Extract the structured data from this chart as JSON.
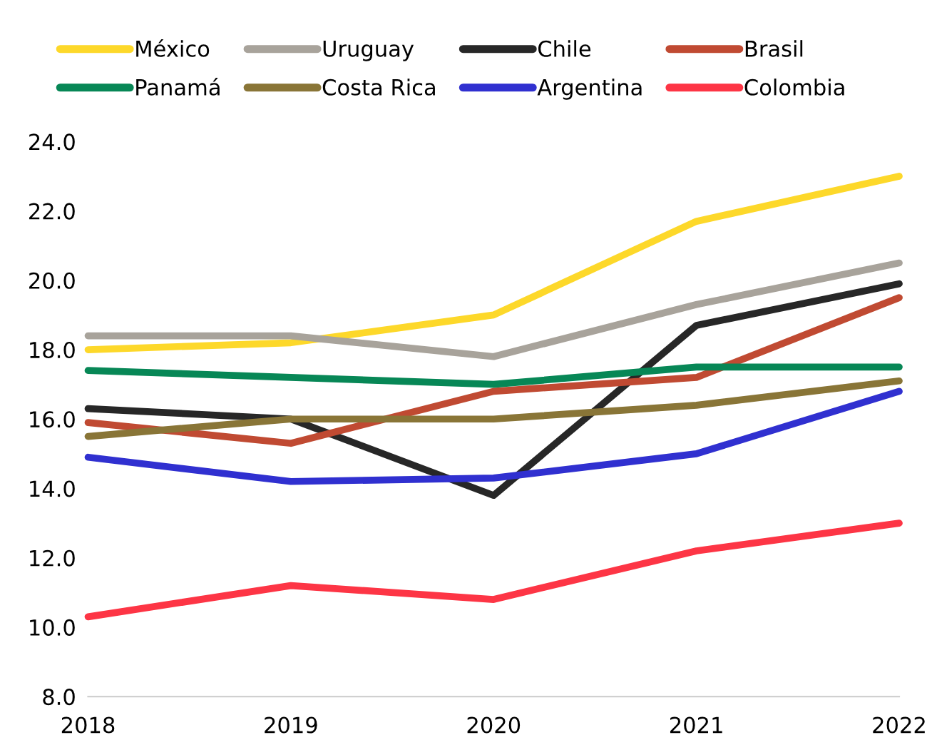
{
  "chart_data": {
    "type": "line",
    "x": [
      2018,
      2019,
      2020,
      2021,
      2022
    ],
    "series": [
      {
        "name": "México",
        "color": "#fdd82a",
        "values": [
          18.0,
          18.2,
          19.0,
          21.7,
          23.0
        ]
      },
      {
        "name": "Uruguay",
        "color": "#a8a39b",
        "values": [
          18.4,
          18.4,
          17.8,
          19.3,
          20.5
        ]
      },
      {
        "name": "Chile",
        "color": "#272727",
        "values": [
          16.3,
          16.0,
          13.8,
          18.7,
          19.9
        ]
      },
      {
        "name": "Brasil",
        "color": "#c04a32",
        "values": [
          15.9,
          15.3,
          16.8,
          17.2,
          19.5
        ]
      },
      {
        "name": "Panamá",
        "color": "#078756",
        "values": [
          17.4,
          17.2,
          17.0,
          17.5,
          17.5
        ]
      },
      {
        "name": "Costa Rica",
        "color": "#897537",
        "values": [
          15.5,
          16.0,
          16.0,
          16.4,
          17.1
        ]
      },
      {
        "name": "Argentina",
        "color": "#3030d0",
        "values": [
          14.9,
          14.2,
          14.3,
          15.0,
          16.8
        ]
      },
      {
        "name": "Colombia",
        "color": "#fd3545",
        "values": [
          10.3,
          11.2,
          10.8,
          12.2,
          13.0
        ]
      }
    ],
    "xlim": [
      2018,
      2022
    ],
    "xticks": [
      2018,
      2019,
      2020,
      2021,
      2022
    ],
    "ylim": [
      8,
      24
    ],
    "yticks": [
      {
        "value": 8,
        "label": "8.0"
      },
      {
        "value": 10,
        "label": "10.0"
      },
      {
        "value": 12,
        "label": "12.0"
      },
      {
        "value": 14,
        "label": "14.0"
      },
      {
        "value": 16,
        "label": "16.0"
      },
      {
        "value": 18,
        "label": "18.0"
      },
      {
        "value": 20,
        "label": "20.0"
      },
      {
        "value": 22,
        "label": "22.0"
      },
      {
        "value": 24,
        "label": "24.0"
      }
    ],
    "grid": false,
    "legend": "top",
    "marker": "none",
    "line_style": "solid"
  }
}
